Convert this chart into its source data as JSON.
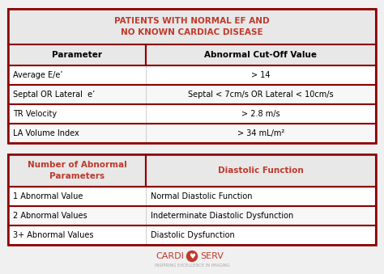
{
  "bg_color": "#f0f0f0",
  "border_color": "#8b0000",
  "table1_title": "PATIENTS WITH NORMAL EF AND\nNO KNOWN CARDIAC DISEASE",
  "table1_title_color": "#c0392b",
  "table1_header": [
    "Parameter",
    "Abnormal Cut-Off Value"
  ],
  "table1_rows": [
    [
      "Average E/e’",
      "> 14"
    ],
    [
      "Septal OR Lateral  e’",
      "Septal < 7cm/s OR Lateral < 10cm/s"
    ],
    [
      "TR Velocity",
      "> 2.8 m/s"
    ],
    [
      "LA Volume Index",
      "> 34 mL/m²"
    ]
  ],
  "table2_header": [
    "Number of Abnormal\nParameters",
    "Diastolic Function"
  ],
  "table2_header_color": "#c0392b",
  "table2_rows": [
    [
      "1 Abnormal Value",
      "Normal Diastolic Function"
    ],
    [
      "2 Abnormal Values",
      "Indeterminate Diastolic Dysfunction"
    ],
    [
      "3+ Abnormal Values",
      "Diastolic Dysfunction"
    ]
  ],
  "logo_text_left": "CARDI",
  "logo_text_right": "SERV",
  "logo_subtitle": "INSPIRING EXCELLENCE IN IMAGING",
  "logo_color": "#c0392b",
  "header_bg": "#e8e8e8",
  "row_bg_odd": "#ffffff",
  "row_bg_even": "#f7f7f7",
  "grid_color": "#cccccc"
}
